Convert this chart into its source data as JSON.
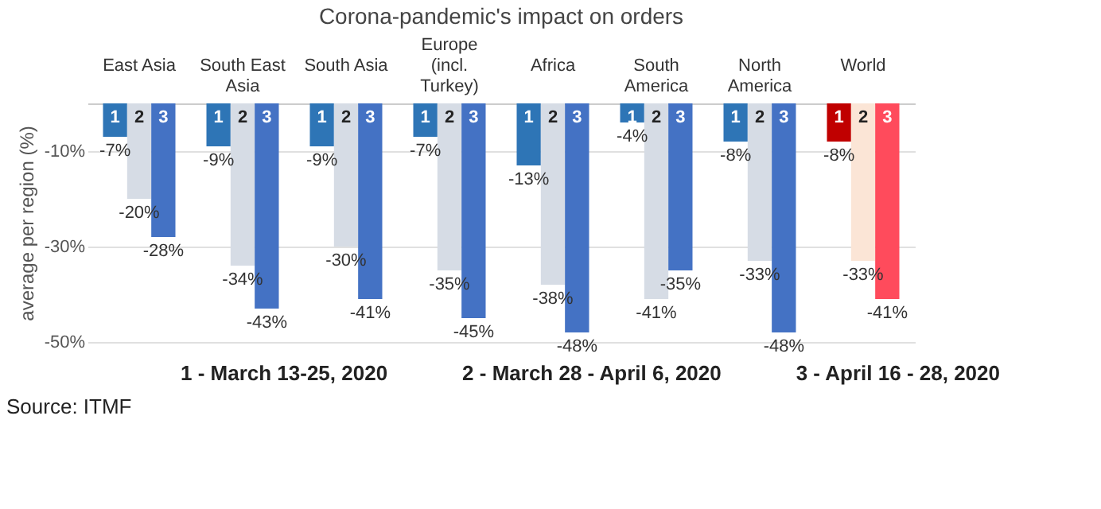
{
  "chart_data": {
    "type": "bar",
    "title": "Corona-pandemic's impact on orders",
    "ylabel": "average per region (%)",
    "categories": [
      "East Asia",
      "South East Asia",
      "South Asia",
      "Europe (incl. Turkey)",
      "Africa",
      "South America",
      "North America",
      "World"
    ],
    "series": [
      {
        "name": "1",
        "color": "#2e75b6",
        "colors": [
          null,
          null,
          null,
          null,
          null,
          null,
          null,
          "#c00000"
        ],
        "values": [
          -7,
          -9,
          -9,
          -7,
          -13,
          -4,
          -8,
          -8
        ],
        "value_labels": [
          "-7%",
          "-9%",
          "-9%",
          "-7%",
          "-13%",
          "-4%",
          "-8%",
          "-8%"
        ]
      },
      {
        "name": "2",
        "color": "#d6dce5",
        "colors": [
          null,
          null,
          null,
          null,
          null,
          null,
          null,
          "#fbe5d6"
        ],
        "values": [
          -20,
          -34,
          -30,
          -35,
          -38,
          -41,
          -33,
          -33
        ],
        "value_labels": [
          "-20%",
          "-34%",
          "-30%",
          "-35%",
          "-38%",
          "-41%",
          "-33%",
          "-33%"
        ]
      },
      {
        "name": "3",
        "color": "#4472c4",
        "colors": [
          null,
          null,
          null,
          null,
          null,
          null,
          null,
          "#ff4b5c"
        ],
        "values": [
          -28,
          -43,
          -41,
          -45,
          -48,
          -35,
          -48,
          -41
        ],
        "value_labels": [
          "-28%",
          "-43%",
          "-41%",
          "-45%",
          "-48%",
          "-35%",
          "-48%",
          "-41%"
        ]
      }
    ],
    "ylim": [
      -50,
      0
    ],
    "yticks": [
      {
        "value": -10,
        "label": "-10%"
      },
      {
        "value": -30,
        "label": "-30%"
      },
      {
        "value": -50,
        "label": "-50%"
      }
    ],
    "grid": "y",
    "annotations": [
      "1 - March 13-25, 2020",
      "2 - March 28 - April 6, 2020",
      "3 - April 16 - 28, 2020",
      "Source: ITMF"
    ]
  }
}
